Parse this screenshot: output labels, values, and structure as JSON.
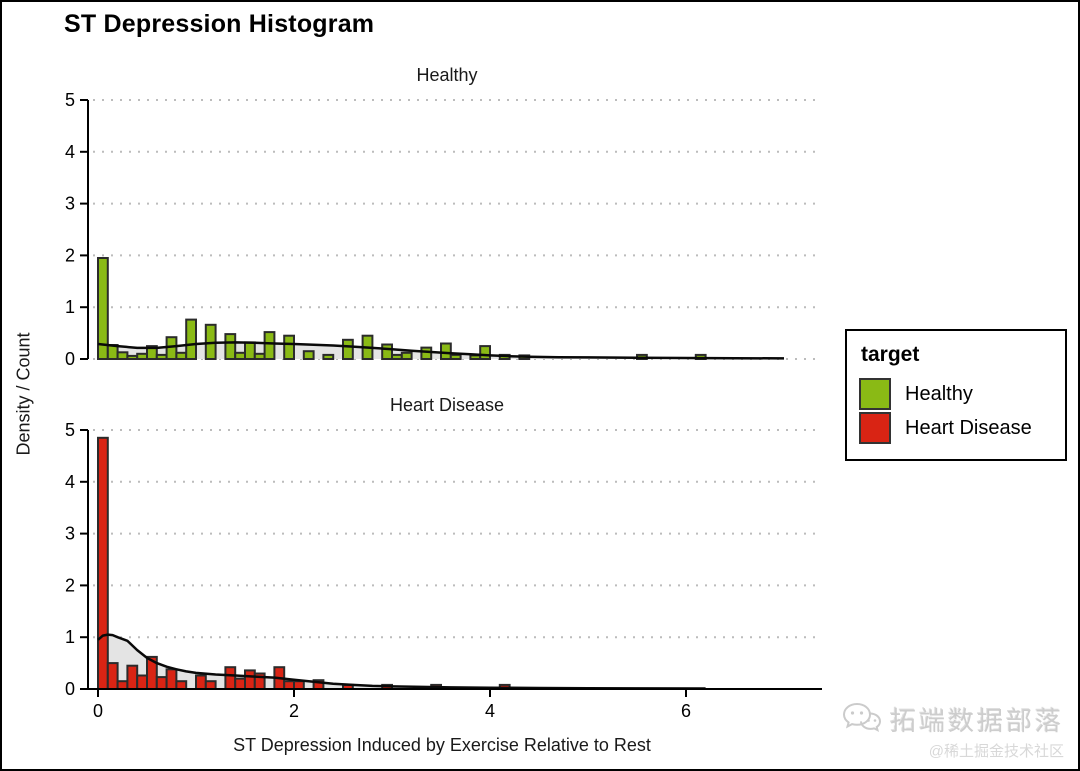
{
  "title": "ST Depression Histogram",
  "axes": {
    "y_label": "Density / Count",
    "x_label": "ST Depression Induced by Exercise Relative to Rest",
    "x_ticks": [
      0,
      2,
      4,
      6
    ],
    "y_ticks": [
      0,
      1,
      2,
      3,
      4,
      5
    ]
  },
  "legend": {
    "title": "target"
  },
  "watermark": {
    "icon": "wechat-icon",
    "brand": "拓端数据部落",
    "community": "@稀土掘金技术社区"
  },
  "chart_data": {
    "type": "bar",
    "subtype": "faceted-histogram-with-density-overlay",
    "title": "ST Depression Histogram",
    "xlabel": "ST Depression Induced by Exercise Relative to Rest",
    "ylabel": "Density / Count",
    "bin_width": 0.1,
    "xlim": [
      -0.1,
      7.4
    ],
    "ylim": [
      0,
      5
    ],
    "grid": "dotted-horizontal",
    "legend_position": "right",
    "colors": {
      "bar_outline": "#2b2b2b",
      "density_fill": "#e4e4e4",
      "density_line": "#0a0a0a"
    },
    "facets": [
      {
        "label": "Healthy",
        "color": "#8aba15",
        "bars": [
          [
            0,
            1.95
          ],
          [
            0.1,
            0.27
          ],
          [
            0.2,
            0.13
          ],
          [
            0.3,
            0.06
          ],
          [
            0.4,
            0.1
          ],
          [
            0.5,
            0.25
          ],
          [
            0.6,
            0.08
          ],
          [
            0.7,
            0.42
          ],
          [
            0.8,
            0.12
          ],
          [
            0.9,
            0.76
          ],
          [
            1.1,
            0.66
          ],
          [
            1.3,
            0.48
          ],
          [
            1.4,
            0.12
          ],
          [
            1.5,
            0.32
          ],
          [
            1.6,
            0.1
          ],
          [
            1.7,
            0.52
          ],
          [
            1.9,
            0.45
          ],
          [
            2.1,
            0.15
          ],
          [
            2.3,
            0.08
          ],
          [
            2.5,
            0.37
          ],
          [
            2.7,
            0.45
          ],
          [
            2.9,
            0.28
          ],
          [
            3,
            0.08
          ],
          [
            3.1,
            0.12
          ],
          [
            3.3,
            0.22
          ],
          [
            3.5,
            0.3
          ],
          [
            3.6,
            0.08
          ],
          [
            3.8,
            0.07
          ],
          [
            3.9,
            0.25
          ],
          [
            4.1,
            0.08
          ],
          [
            4.3,
            0.07
          ],
          [
            5.5,
            0.08
          ],
          [
            6.1,
            0.08
          ]
        ],
        "density": [
          [
            0,
            0.29
          ],
          [
            0.2,
            0.25
          ],
          [
            0.4,
            0.215
          ],
          [
            0.6,
            0.215
          ],
          [
            0.8,
            0.25
          ],
          [
            1,
            0.29
          ],
          [
            1.2,
            0.315
          ],
          [
            1.4,
            0.32
          ],
          [
            1.6,
            0.315
          ],
          [
            1.8,
            0.3
          ],
          [
            2,
            0.29
          ],
          [
            2.2,
            0.275
          ],
          [
            2.4,
            0.26
          ],
          [
            2.6,
            0.24
          ],
          [
            2.8,
            0.215
          ],
          [
            3,
            0.19
          ],
          [
            3.2,
            0.16
          ],
          [
            3.4,
            0.135
          ],
          [
            3.6,
            0.11
          ],
          [
            3.8,
            0.09
          ],
          [
            4,
            0.07
          ],
          [
            4.2,
            0.055
          ],
          [
            4.4,
            0.045
          ],
          [
            4.7,
            0.035
          ],
          [
            5,
            0.03
          ],
          [
            5.5,
            0.025
          ],
          [
            6,
            0.02
          ],
          [
            6.5,
            0.015
          ],
          [
            7,
            0.012
          ]
        ]
      },
      {
        "label": "Heart Disease",
        "color": "#d92414",
        "bars": [
          [
            0,
            4.85
          ],
          [
            0.1,
            0.5
          ],
          [
            0.2,
            0.15
          ],
          [
            0.3,
            0.45
          ],
          [
            0.4,
            0.26
          ],
          [
            0.5,
            0.62
          ],
          [
            0.6,
            0.23
          ],
          [
            0.7,
            0.38
          ],
          [
            0.8,
            0.15
          ],
          [
            1,
            0.26
          ],
          [
            1.1,
            0.15
          ],
          [
            1.3,
            0.42
          ],
          [
            1.4,
            0.2
          ],
          [
            1.5,
            0.36
          ],
          [
            1.6,
            0.3
          ],
          [
            1.8,
            0.42
          ],
          [
            1.9,
            0.15
          ],
          [
            2,
            0.15
          ],
          [
            2.2,
            0.17
          ],
          [
            2.5,
            0.08
          ],
          [
            2.9,
            0.08
          ],
          [
            3.4,
            0.08
          ],
          [
            4.1,
            0.08
          ]
        ],
        "density": [
          [
            0,
            0.95
          ],
          [
            0.05,
            1.03
          ],
          [
            0.1,
            1.05
          ],
          [
            0.15,
            1.04
          ],
          [
            0.2,
            1
          ],
          [
            0.3,
            0.93
          ],
          [
            0.4,
            0.75
          ],
          [
            0.5,
            0.6
          ],
          [
            0.6,
            0.5
          ],
          [
            0.7,
            0.43
          ],
          [
            0.8,
            0.38
          ],
          [
            0.9,
            0.34
          ],
          [
            1,
            0.31
          ],
          [
            1.2,
            0.28
          ],
          [
            1.4,
            0.26
          ],
          [
            1.6,
            0.24
          ],
          [
            1.8,
            0.22
          ],
          [
            2,
            0.18
          ],
          [
            2.2,
            0.14
          ],
          [
            2.4,
            0.1
          ],
          [
            2.6,
            0.08
          ],
          [
            2.8,
            0.06
          ],
          [
            3,
            0.05
          ],
          [
            3.3,
            0.04
          ],
          [
            3.6,
            0.03
          ],
          [
            4,
            0.025
          ],
          [
            4.5,
            0.02
          ],
          [
            5,
            0.015
          ],
          [
            5.5,
            0.012
          ],
          [
            6.2,
            0.01
          ]
        ]
      }
    ]
  }
}
